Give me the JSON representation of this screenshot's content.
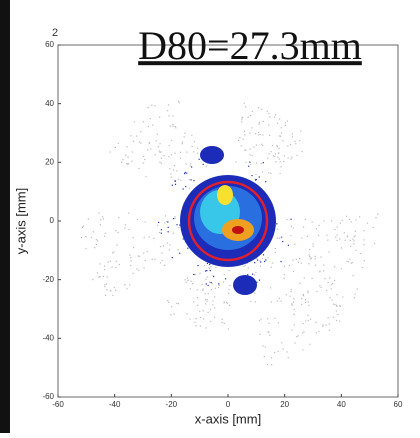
{
  "chart_data": {
    "type": "scatter",
    "annotation": "D80=27.3mm",
    "corner_text": "2",
    "xlabel": "x-axis [mm]",
    "ylabel": "y-axis [mm]",
    "xlim": [
      -60,
      60
    ],
    "ylim": [
      -60,
      60
    ],
    "xticks": [
      -60,
      -40,
      -20,
      0,
      20,
      40,
      60
    ],
    "yticks": [
      -60,
      -40,
      -20,
      0,
      20,
      40,
      60
    ]
  }
}
